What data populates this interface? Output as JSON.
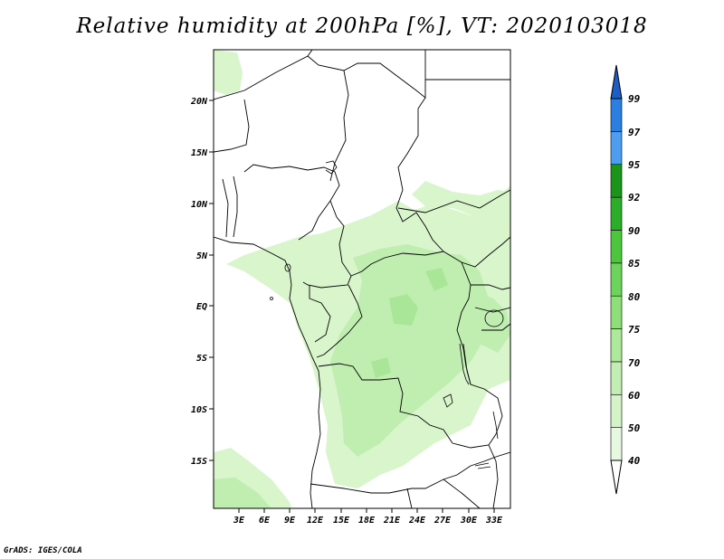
{
  "title": "Relative humidity at 200hPa [%], VT: 2020103018",
  "credit": "GrADS: IGES/COLA",
  "map": {
    "lat_labels": [
      "20N",
      "15N",
      "10N",
      "5N",
      "EQ",
      "5S",
      "10S",
      "15S"
    ],
    "lon_labels": [
      "3E",
      "6E",
      "9E",
      "12E",
      "15E",
      "18E",
      "21E",
      "24E",
      "27E",
      "30E",
      "33E"
    ]
  },
  "colorbar": {
    "levels": [
      "40",
      "50",
      "60",
      "70",
      "75",
      "80",
      "85",
      "90",
      "92",
      "95",
      "97",
      "99"
    ],
    "colors": [
      "#e6f8e0",
      "#d4f4c8",
      "#c2eeb3",
      "#aee89a",
      "#8edf7a",
      "#6cd45a",
      "#4cc63c",
      "#2cae28",
      "#1b941a",
      "#4d9df0",
      "#2a7fe0",
      "#1a5fc8"
    ]
  }
}
